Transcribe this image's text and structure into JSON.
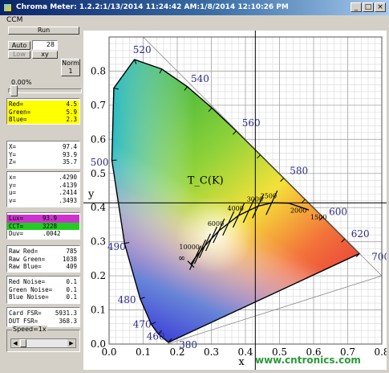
{
  "window": {
    "title": "Chroma Meter: 1.2.2:1/13/2014 11:24:42 AM:1/8/2014 12:10:26 PM"
  },
  "menu": {
    "ccm": "CCM"
  },
  "controls": {
    "run": "Run",
    "auto": "Auto",
    "auto_value": "28",
    "low": "Low",
    "xy": "xy",
    "norm": "Norm",
    "norm_value": "1",
    "percent": "0.00%",
    "speed": "Speed=1x"
  },
  "rgb": [
    {
      "label": "Red=",
      "value": "4.5"
    },
    {
      "label": "Green=",
      "value": "5.9"
    },
    {
      "label": "Blue=",
      "value": "2.3"
    }
  ],
  "xyz": [
    {
      "label": "X=",
      "value": "97.4"
    },
    {
      "label": "Y=",
      "value": "93.9"
    },
    {
      "label": "Z=",
      "value": "35.7"
    }
  ],
  "chroma": [
    {
      "label": "x=",
      "value": ".4290"
    },
    {
      "label": "y=",
      "value": ".4139"
    },
    {
      "label": "u=",
      "value": ".2414"
    },
    {
      "label": "v=",
      "value": ".3493"
    }
  ],
  "lux": {
    "label": "Lux=",
    "value": "93.9"
  },
  "cct": {
    "label": "CCT=",
    "value": "3228"
  },
  "duv": {
    "label": "Duv=",
    "value": ".0042"
  },
  "raw": [
    {
      "label": "Raw Red=",
      "value": "785"
    },
    {
      "label": "Raw Green=",
      "value": "1038"
    },
    {
      "label": "Raw Blue=",
      "value": "409"
    }
  ],
  "noise": [
    {
      "label": "Red Noise=",
      "value": "0.1"
    },
    {
      "label": "Green Noise=",
      "value": "0.1"
    },
    {
      "label": "Blue Noise=",
      "value": "0.1"
    }
  ],
  "fsr": [
    {
      "label": "Card FSR=",
      "value": "5931.3"
    },
    {
      "label": "DUT FSR=",
      "value": "368.3"
    }
  ],
  "colors": {
    "yellow": "#ffff00",
    "magenta": "#cc33cc",
    "green": "#22cc22"
  },
  "icons": [
    "minimize-icon",
    "maximize-icon",
    "close-icon",
    "scroll-left-icon",
    "scroll-right-icon"
  ],
  "chart_data": {
    "type": "scatter",
    "title": "",
    "xlabel": "x",
    "ylabel": "y",
    "xlim": [
      0.0,
      0.8
    ],
    "ylim": [
      0.0,
      0.9
    ],
    "xticks": [
      "0.0",
      "0.1",
      "0.2",
      "0.3",
      "0.4",
      "0.5",
      "0.6",
      "0.7",
      "0.8"
    ],
    "yticks": [
      "0.0",
      "0.1",
      "0.2",
      "0.3",
      "0.4",
      "0.5",
      "0.6",
      "0.7",
      "0.8"
    ],
    "grid": true,
    "spectral_locus": [
      {
        "nm": "380",
        "x": 0.1741,
        "y": 0.005
      },
      {
        "nm": "460",
        "x": 0.144,
        "y": 0.0297
      },
      {
        "nm": "470",
        "x": 0.1241,
        "y": 0.0578
      },
      {
        "nm": "480",
        "x": 0.0913,
        "y": 0.1327
      },
      {
        "nm": "490",
        "x": 0.0454,
        "y": 0.295
      },
      {
        "nm": "500",
        "x": 0.0082,
        "y": 0.5384
      },
      {
        "nm": "510",
        "x": 0.0139,
        "y": 0.7502
      },
      {
        "nm": "520",
        "x": 0.0743,
        "y": 0.8338
      },
      {
        "nm": "530",
        "x": 0.1547,
        "y": 0.8059
      },
      {
        "nm": "540",
        "x": 0.2296,
        "y": 0.7543
      },
      {
        "nm": "550",
        "x": 0.3016,
        "y": 0.6923
      },
      {
        "nm": "560",
        "x": 0.3731,
        "y": 0.6245
      },
      {
        "nm": "570",
        "x": 0.4441,
        "y": 0.5547
      },
      {
        "nm": "580",
        "x": 0.5125,
        "y": 0.4866
      },
      {
        "nm": "590",
        "x": 0.5752,
        "y": 0.4242
      },
      {
        "nm": "600",
        "x": 0.627,
        "y": 0.3725
      },
      {
        "nm": "620",
        "x": 0.6915,
        "y": 0.3083
      },
      {
        "nm": "700",
        "x": 0.7347,
        "y": 0.2653
      }
    ],
    "wavelength_labels": [
      "520",
      "540",
      "560",
      "580",
      "600",
      "620",
      "700",
      "500",
      "490",
      "480",
      "470",
      "460",
      "380"
    ],
    "planckian_label": "T_C(K)",
    "cct_labels": [
      {
        "text": "10000",
        "x": 0.281,
        "y": 0.288
      },
      {
        "text": "6000",
        "x": 0.322,
        "y": 0.332
      },
      {
        "text": "4000",
        "x": 0.38,
        "y": 0.377
      },
      {
        "text": "3000",
        "x": 0.437,
        "y": 0.404
      },
      {
        "text": "2500",
        "x": 0.477,
        "y": 0.414
      },
      {
        "text": "2000",
        "x": 0.527,
        "y": 0.413
      },
      {
        "text": "1500",
        "x": 0.586,
        "y": 0.393
      },
      {
        "text": "∞",
        "x": 0.24,
        "y": 0.234
      }
    ],
    "planckian_locus": [
      {
        "x": 0.24,
        "y": 0.234
      },
      {
        "x": 0.253,
        "y": 0.253
      },
      {
        "x": 0.281,
        "y": 0.288
      },
      {
        "x": 0.322,
        "y": 0.332
      },
      {
        "x": 0.38,
        "y": 0.377
      },
      {
        "x": 0.437,
        "y": 0.404
      },
      {
        "x": 0.477,
        "y": 0.414
      },
      {
        "x": 0.527,
        "y": 0.413
      },
      {
        "x": 0.586,
        "y": 0.393
      }
    ],
    "measurement": {
      "x": 0.429,
      "y": 0.4139
    }
  },
  "watermark": "www.cntronics.com"
}
